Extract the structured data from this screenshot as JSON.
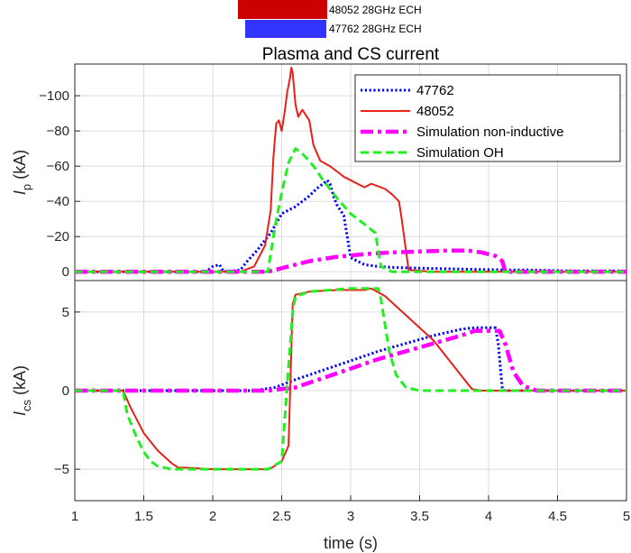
{
  "ech_bars": [
    {
      "label": "48052 28GHz ECH",
      "color": "#cc0000"
    },
    {
      "label": "47762 28GHz ECH",
      "color": "#3333ff"
    }
  ],
  "chart_data": [
    {
      "type": "line",
      "title": "Plasma and CS current",
      "ylabel": {
        "main": "I",
        "sub": "p",
        "unit": " (kA)"
      },
      "xlim": [
        1,
        5
      ],
      "ylim": [
        5,
        -118
      ],
      "y_reversed": true,
      "yticks": [
        0,
        -20,
        -40,
        -60,
        -80,
        -100
      ],
      "ytick_labels": [
        "0",
        "−20",
        "−40",
        "−60",
        "−80",
        "−100"
      ],
      "grid": true,
      "legend": "top-right",
      "series": [
        {
          "name": "47762",
          "color": "#0000ff",
          "style": "dotted",
          "x": [
            1.0,
            1.95,
            2.0,
            2.05,
            2.08,
            2.2,
            2.25,
            2.32,
            2.38,
            2.42,
            2.5,
            2.6,
            2.7,
            2.75,
            2.8,
            2.83,
            2.85,
            2.88,
            2.9,
            2.95,
            3.0,
            3.1,
            3.2,
            3.3,
            3.5,
            3.8,
            4.0,
            4.2,
            4.3,
            4.6,
            5.0
          ],
          "y": [
            0,
            0,
            -3,
            -4,
            0,
            -1,
            -6,
            -12,
            -18,
            -22,
            -33,
            -37,
            -43,
            -47,
            -50,
            -52,
            -50,
            -42,
            -38,
            -32,
            -8,
            -4,
            -3,
            -2.5,
            -2,
            -1.5,
            -1.2,
            -1,
            -1,
            -0.5,
            -0.5
          ]
        },
        {
          "name": "48052",
          "color": "#e8201a",
          "style": "solid",
          "x": [
            1.0,
            2.2,
            2.3,
            2.38,
            2.42,
            2.44,
            2.46,
            2.48,
            2.5,
            2.52,
            2.54,
            2.56,
            2.57,
            2.58,
            2.6,
            2.62,
            2.65,
            2.7,
            2.73,
            2.78,
            2.85,
            2.9,
            2.95,
            3.0,
            3.1,
            3.15,
            3.25,
            3.3,
            3.35,
            3.37,
            3.42,
            3.6,
            3.8,
            5.0
          ],
          "y": [
            0,
            0,
            -3,
            -15,
            -35,
            -65,
            -84,
            -86,
            -80,
            -90,
            -102,
            -110,
            -116,
            -113,
            -95,
            -88,
            -92,
            -86,
            -72,
            -63,
            -60,
            -57,
            -54,
            -52,
            -48,
            -50,
            -47,
            -44,
            -40,
            -30,
            -1,
            0,
            0,
            0
          ]
        },
        {
          "name": "Simulation non-inductive",
          "color": "#ff00ff",
          "style": "dashdot",
          "x": [
            1.0,
            2.4,
            2.5,
            2.6,
            2.7,
            2.9,
            3.1,
            3.3,
            3.5,
            3.7,
            3.85,
            3.95,
            4.05,
            4.1,
            4.12,
            5.0
          ],
          "y": [
            0,
            0,
            -2,
            -4,
            -6,
            -8.5,
            -10,
            -11,
            -11.5,
            -12,
            -12,
            -11,
            -9,
            -6,
            0,
            0
          ]
        },
        {
          "name": "Simulation OH",
          "color": "#22ee22",
          "style": "dashed",
          "x": [
            1.0,
            2.4,
            2.45,
            2.5,
            2.55,
            2.6,
            2.65,
            2.7,
            2.75,
            2.8,
            2.9,
            3.0,
            3.1,
            3.18,
            3.2,
            3.22,
            3.3,
            5.0
          ],
          "y": [
            0,
            0,
            -25,
            -45,
            -62,
            -70,
            -67,
            -63,
            -58,
            -52,
            -42,
            -33,
            -27,
            -22,
            -12,
            -3,
            0,
            0
          ]
        }
      ]
    },
    {
      "type": "line",
      "ylabel": {
        "main": "I",
        "sub": "cs",
        "unit": " (kA)"
      },
      "xlabel": "time (s)",
      "xlim": [
        1,
        5
      ],
      "ylim": [
        -7,
        7
      ],
      "xticks": [
        1,
        1.5,
        2,
        2.5,
        3,
        3.5,
        4,
        4.5,
        5
      ],
      "xtick_labels": [
        "1",
        "1.5",
        "2",
        "2.5",
        "3",
        "3.5",
        "4",
        "4.5",
        "5"
      ],
      "yticks": [
        -5,
        0,
        5
      ],
      "ytick_labels": [
        "−5",
        "0",
        "5"
      ],
      "grid": true,
      "series": [
        {
          "name": "47762",
          "color": "#0000ff",
          "style": "dotted",
          "x": [
            1.0,
            2.3,
            2.45,
            2.6,
            2.8,
            3.0,
            3.2,
            3.4,
            3.6,
            3.8,
            3.9,
            4.05,
            4.07,
            4.1,
            4.12,
            5.0
          ],
          "y": [
            0,
            0,
            0.2,
            0.7,
            1.3,
            1.9,
            2.5,
            3.0,
            3.5,
            3.9,
            4.0,
            4.0,
            3.0,
            0.1,
            0,
            0
          ]
        },
        {
          "name": "48052",
          "color": "#e8201a",
          "style": "solid",
          "x": [
            1.0,
            1.35,
            1.4,
            1.5,
            1.6,
            1.7,
            1.75,
            1.8,
            2.0,
            2.2,
            2.4,
            2.42,
            2.5,
            2.55,
            2.58,
            2.6,
            2.7,
            2.9,
            3.1,
            3.15,
            3.25,
            3.6,
            3.88,
            3.95,
            5.0
          ],
          "y": [
            0,
            0,
            -1,
            -2.7,
            -3.8,
            -4.6,
            -4.9,
            -4.9,
            -5.0,
            -5.0,
            -5.0,
            -4.95,
            -4.5,
            -3.5,
            5.5,
            6.1,
            6.3,
            6.4,
            6.4,
            6.5,
            6.0,
            3.2,
            0.1,
            0,
            0
          ]
        },
        {
          "name": "Simulation non-inductive",
          "color": "#ff00ff",
          "style": "dashdot",
          "x": [
            1.0,
            2.4,
            2.6,
            2.8,
            3.0,
            3.2,
            3.4,
            3.6,
            3.8,
            3.9,
            4.08,
            4.12,
            4.18,
            4.25,
            4.35,
            5.0
          ],
          "y": [
            0,
            0,
            0.2,
            0.8,
            1.4,
            2.0,
            2.5,
            3.0,
            3.5,
            3.8,
            3.8,
            3.0,
            1.2,
            0.3,
            0,
            0
          ]
        },
        {
          "name": "Simulation OH",
          "color": "#22ee22",
          "style": "dashed",
          "x": [
            1.0,
            1.35,
            1.38,
            1.45,
            1.5,
            1.55,
            1.6,
            1.7,
            2.0,
            2.4,
            2.42,
            2.5,
            2.55,
            2.58,
            2.6,
            2.7,
            3.0,
            3.2,
            3.22,
            3.28,
            3.33,
            3.4,
            3.5,
            5.0
          ],
          "y": [
            0,
            0,
            -1.5,
            -3.0,
            -3.9,
            -4.5,
            -4.8,
            -5.0,
            -5.0,
            -5.0,
            -4.9,
            -4.5,
            1.5,
            5.0,
            6.0,
            6.3,
            6.5,
            6.5,
            5.8,
            2.5,
            1.0,
            0.2,
            0,
            0
          ]
        }
      ]
    }
  ]
}
